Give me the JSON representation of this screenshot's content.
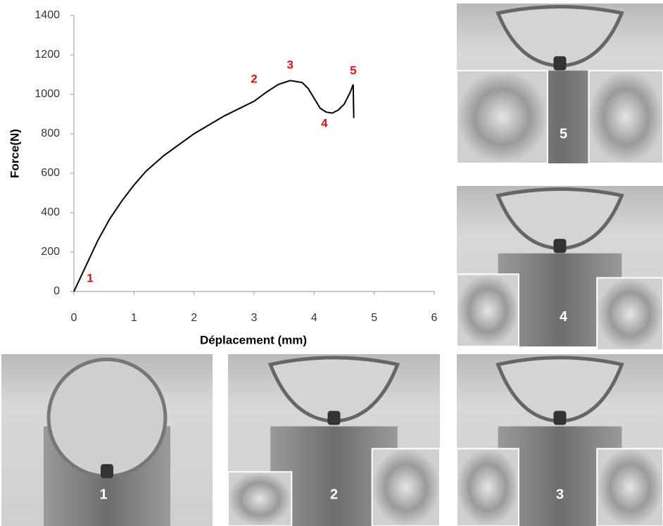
{
  "chart_data": {
    "type": "line",
    "xlabel": "Déplacement (mm)",
    "ylabel": "Force(N)",
    "x": [
      0,
      0.2,
      0.4,
      0.6,
      0.8,
      1.0,
      1.2,
      1.5,
      2.0,
      2.5,
      3.0,
      3.2,
      3.4,
      3.6,
      3.8,
      3.9,
      4.0,
      4.1,
      4.2,
      4.3,
      4.4,
      4.5,
      4.6,
      4.65,
      4.66
    ],
    "values": [
      0,
      130,
      260,
      370,
      460,
      540,
      610,
      690,
      800,
      890,
      965,
      1010,
      1050,
      1070,
      1060,
      1030,
      980,
      930,
      910,
      905,
      920,
      950,
      1010,
      1050,
      880
    ],
    "color": "#000000",
    "xlim": [
      0,
      6
    ],
    "ylim": [
      0,
      1400
    ],
    "xticks": [
      0,
      1,
      2,
      3,
      4,
      5,
      6
    ],
    "yticks": [
      0,
      200,
      400,
      600,
      800,
      1000,
      1200,
      1400
    ],
    "grid": false,
    "annotations": [
      {
        "text": "1",
        "x": 0.27,
        "y": 64,
        "color": "#e01010"
      },
      {
        "text": "2",
        "x": 3.0,
        "y": 1075,
        "color": "#e01010"
      },
      {
        "text": "3",
        "x": 3.6,
        "y": 1146,
        "color": "#e01010"
      },
      {
        "text": "4",
        "x": 4.17,
        "y": 850,
        "color": "#e01010"
      },
      {
        "text": "5",
        "x": 4.65,
        "y": 1118,
        "color": "#e01010"
      }
    ]
  },
  "photos": [
    "5",
    "4",
    "1",
    "2",
    "3"
  ]
}
